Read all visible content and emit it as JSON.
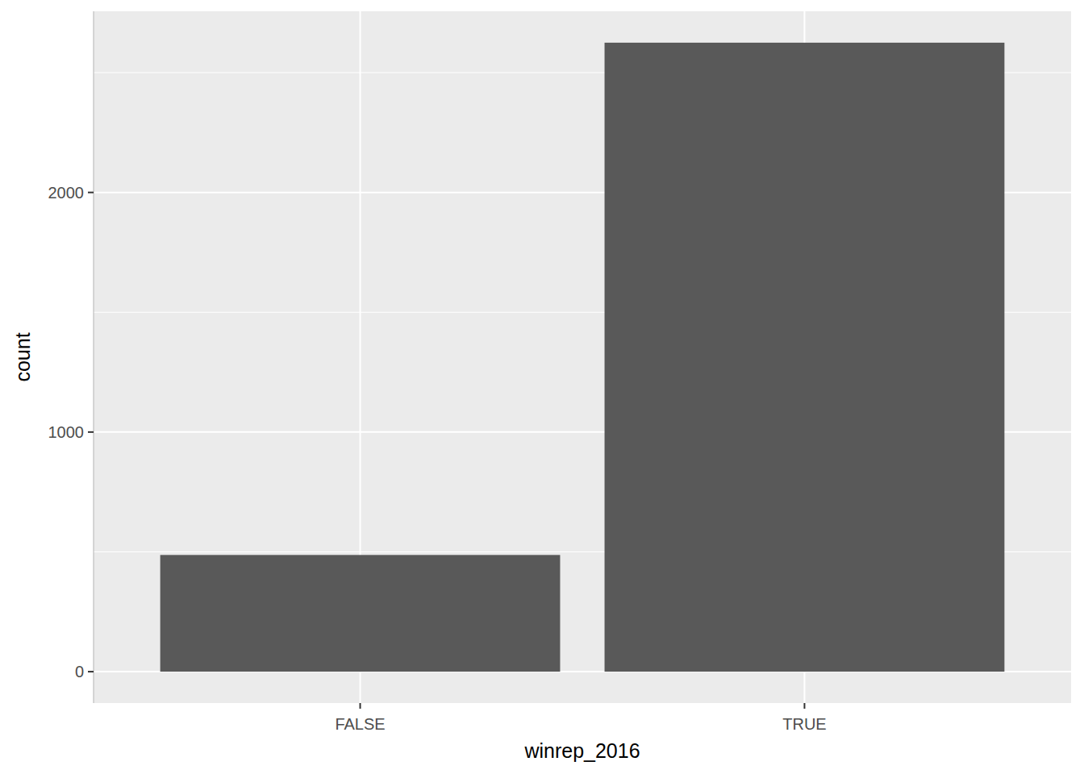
{
  "chart_data": {
    "type": "bar",
    "categories": [
      "FALSE",
      "TRUE"
    ],
    "values": [
      487,
      2625
    ],
    "color": "#595959",
    "x_label": "winrep_2016",
    "y_label": "count",
    "ylim": [
      -131,
      2756
    ],
    "yticks": [
      0,
      1000,
      2000
    ],
    "grid": true
  }
}
